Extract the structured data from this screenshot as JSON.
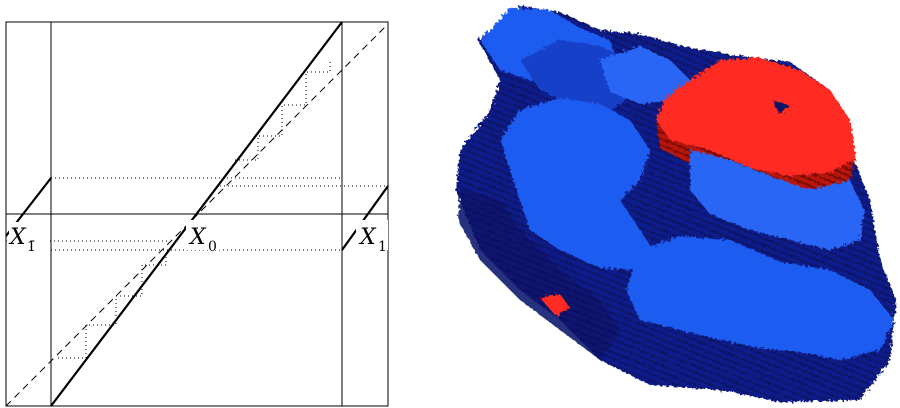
{
  "left_diagram": {
    "labels": [
      {
        "id": "x-bar-1",
        "base": "X",
        "sub": "1̄"
      },
      {
        "id": "x-0",
        "base": "X",
        "sub": "0"
      },
      {
        "id": "x-1",
        "base": "X",
        "sub": "1"
      }
    ]
  },
  "right_figure": {
    "colors": {
      "light_blue": "#1f5cf0",
      "mid_blue": "#1740c8",
      "dark_blue": "#0d1f8a",
      "navy": "#071266",
      "red": "#ff2a22",
      "dark_red": "#b81208"
    }
  }
}
